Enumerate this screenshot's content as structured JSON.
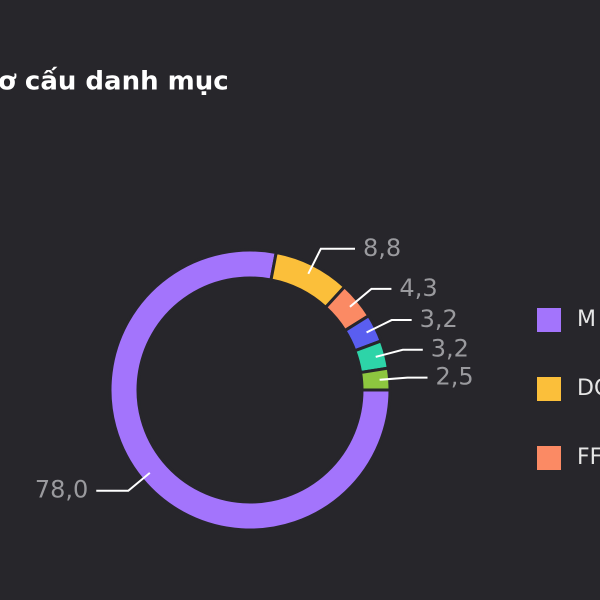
{
  "chart_data": {
    "type": "donut",
    "title": "ơ cấu danh mục",
    "categories": [
      "M",
      "DC",
      "FF",
      null,
      null,
      null
    ],
    "values": [
      78.0,
      8.8,
      4.3,
      3.2,
      3.2,
      2.5
    ],
    "value_labels": [
      "78,0",
      "8,8",
      "4,3",
      "3,2",
      "3,2",
      "2,5"
    ],
    "colors": [
      "#a374fc",
      "#fbbf3a",
      "#fb8a64",
      "#5a5ef0",
      "#2dd4a8",
      "#8dc63f"
    ]
  }
}
